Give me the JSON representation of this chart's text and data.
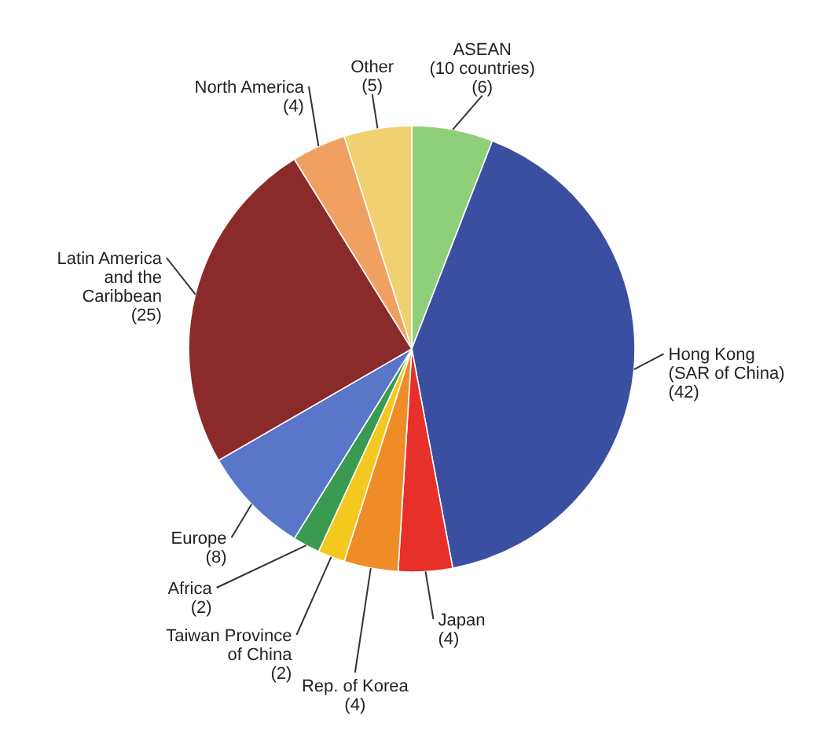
{
  "chart_data": {
    "type": "pie",
    "categories": [
      "ASEAN (10 countries)",
      "Hong Kong (SAR of China)",
      "Japan",
      "Rep. of Korea",
      "Taiwan Province of China",
      "Africa",
      "Europe",
      "Latin America and the Caribbean",
      "North America",
      "Other"
    ],
    "values": [
      6,
      42,
      4,
      4,
      2,
      2,
      8,
      25,
      4,
      5
    ],
    "colors": [
      "#8fcf7a",
      "#3a4fa0",
      "#e8302a",
      "#f08c28",
      "#f5c820",
      "#3a9a50",
      "#5a76c8",
      "#8b2a2a",
      "#f0a060",
      "#f0d070"
    ],
    "value_labels": [
      "(6)",
      "(42)",
      "(4)",
      "(4)",
      "(2)",
      "(2)",
      "(8)",
      "(25)",
      "(4)",
      "(5)"
    ]
  }
}
